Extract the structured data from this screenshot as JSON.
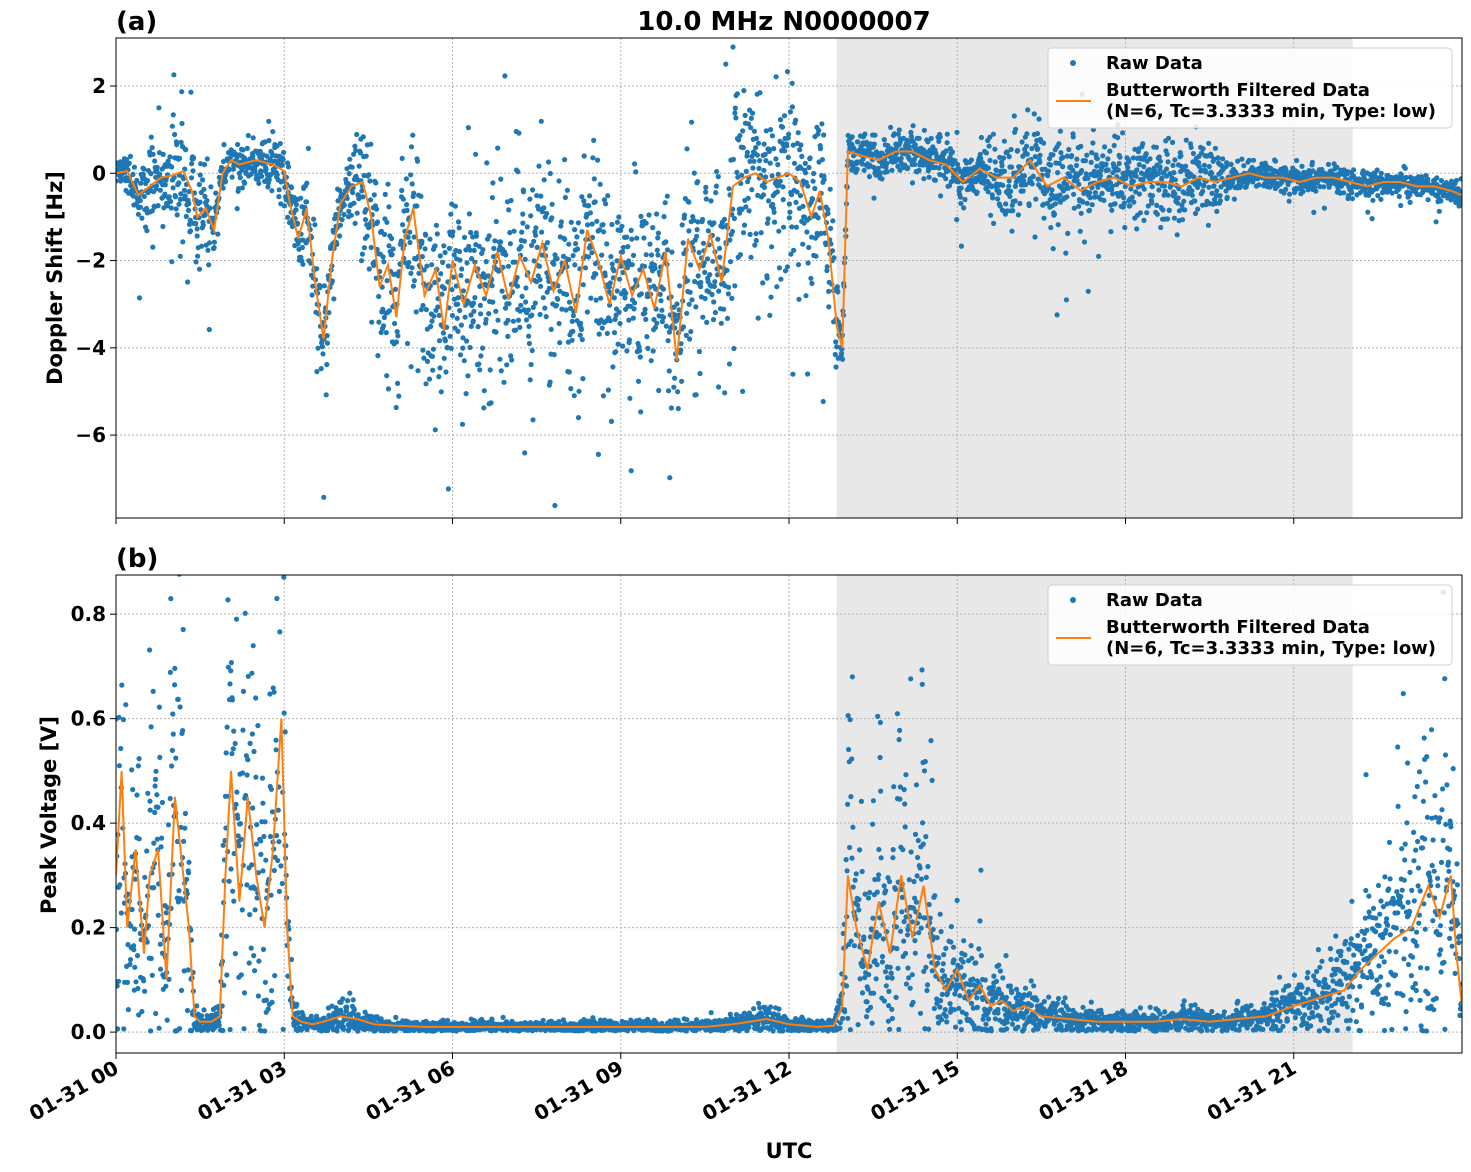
{
  "figure": {
    "title": "10.0 MHz N0000007",
    "xlabel": "UTC",
    "x_ticks": [
      "01-31 00",
      "01-31 03",
      "01-31 06",
      "01-31 09",
      "01-31 12",
      "01-31 15",
      "01-31 18",
      "01-31 21"
    ],
    "colors": {
      "raw": "#1f77b4",
      "filtered": "#ff7f0e",
      "shade": "#e8e8e8",
      "grid": "#b0b0b0"
    }
  },
  "legend": {
    "raw": "Raw Data",
    "filtered_line1": "Butterworth Filtered Data",
    "filtered_line2": "(N=6, Tc=3.3333 min, Type: low)",
    "placement": "top-right"
  },
  "chart_data": [
    {
      "panel": "(a)",
      "type": "scatter",
      "ylabel": "Doppler Shift [Hz]",
      "xlim_hours": [
        0,
        24
      ],
      "ylim": [
        -7.9,
        3.1
      ],
      "y_ticks": [
        2,
        0,
        -2,
        -4,
        -6
      ],
      "y_tick_labels": [
        "2",
        "0",
        "−2",
        "−4",
        "−6"
      ],
      "shaded_hours": [
        12.85,
        22.05
      ],
      "grid": true,
      "series": [
        {
          "name": "Butterworth Filtered Data",
          "style": "line",
          "x": [
            0,
            0.2,
            0.4,
            0.6,
            0.8,
            1.0,
            1.2,
            1.35,
            1.45,
            1.6,
            1.75,
            1.9,
            2.05,
            2.2,
            2.5,
            2.8,
            3.0,
            3.1,
            3.25,
            3.4,
            3.55,
            3.7,
            3.85,
            4.0,
            4.2,
            4.4,
            4.55,
            4.7,
            4.85,
            5.0,
            5.15,
            5.3,
            5.5,
            5.7,
            5.85,
            6.0,
            6.2,
            6.4,
            6.6,
            6.8,
            7.0,
            7.2,
            7.4,
            7.6,
            7.8,
            8.0,
            8.2,
            8.4,
            8.6,
            8.8,
            9.0,
            9.2,
            9.4,
            9.6,
            9.8,
            10.0,
            10.2,
            10.4,
            10.6,
            10.8,
            11.0,
            11.2,
            11.4,
            11.6,
            11.8,
            12.0,
            12.2,
            12.4,
            12.55,
            12.7,
            12.85,
            12.95,
            13.05,
            13.3,
            13.6,
            13.9,
            14.2,
            14.5,
            14.8,
            15.1,
            15.4,
            15.7,
            16.0,
            16.3,
            16.6,
            16.9,
            17.2,
            17.5,
            17.8,
            18.1,
            18.4,
            18.7,
            19.0,
            19.3,
            19.6,
            19.9,
            20.2,
            20.5,
            20.8,
            21.1,
            21.4,
            21.7,
            22.0,
            22.3,
            22.6,
            22.9,
            23.2,
            23.5,
            23.8,
            24.0
          ],
          "y": [
            0.0,
            0.05,
            -0.5,
            -0.3,
            -0.1,
            -0.05,
            0.05,
            -0.4,
            -1.0,
            -0.8,
            -1.3,
            0.0,
            0.3,
            0.2,
            0.3,
            0.2,
            0.05,
            -0.7,
            -1.5,
            -0.8,
            -2.5,
            -3.8,
            -2.0,
            -0.7,
            -0.3,
            -0.2,
            -1.0,
            -2.6,
            -2.1,
            -3.3,
            -1.5,
            -0.8,
            -2.8,
            -2.2,
            -3.6,
            -2.0,
            -3.0,
            -2.1,
            -2.8,
            -1.8,
            -2.9,
            -1.9,
            -2.5,
            -1.6,
            -2.7,
            -2.0,
            -3.2,
            -1.3,
            -2.0,
            -3.0,
            -1.9,
            -2.8,
            -2.2,
            -3.1,
            -1.8,
            -4.3,
            -1.5,
            -2.2,
            -1.4,
            -2.5,
            -0.3,
            -0.1,
            0.0,
            -0.2,
            -0.1,
            0.0,
            -0.2,
            -1.0,
            -0.4,
            -1.5,
            -3.5,
            -4.0,
            0.5,
            0.4,
            0.3,
            0.5,
            0.5,
            0.3,
            0.2,
            -0.2,
            0.1,
            -0.1,
            -0.1,
            0.3,
            -0.3,
            -0.1,
            -0.4,
            -0.2,
            -0.1,
            -0.3,
            -0.2,
            -0.2,
            -0.3,
            -0.1,
            -0.2,
            -0.1,
            0.0,
            -0.1,
            -0.1,
            -0.2,
            -0.1,
            -0.1,
            -0.2,
            -0.3,
            -0.2,
            -0.2,
            -0.3,
            -0.3,
            -0.4,
            -0.5
          ]
        },
        {
          "name": "Raw Data",
          "style": "points",
          "points_per_hour": 150,
          "scatter_halfwidth": [
            [
              0,
              0.3
            ],
            [
              1.3,
              1.3
            ],
            [
              2.0,
              0.3
            ],
            [
              3.1,
              0.8
            ],
            [
              3.5,
              1.2
            ],
            [
              4.1,
              0.5
            ],
            [
              4.6,
              2.0
            ],
            [
              12.3,
              2.0
            ],
            [
              12.8,
              1.6
            ],
            [
              13.0,
              0.35
            ],
            [
              15.5,
              0.6
            ],
            [
              16.0,
              1.0
            ],
            [
              19.5,
              0.8
            ],
            [
              19.8,
              0.3
            ],
            [
              24,
              0.25
            ]
          ]
        }
      ]
    },
    {
      "panel": "(b)",
      "type": "scatter",
      "ylabel": "Peak Voltage [V]",
      "xlim_hours": [
        0,
        24
      ],
      "ylim": [
        -0.04,
        0.875
      ],
      "y_ticks": [
        0.8,
        0.6,
        0.4,
        0.2,
        0.0
      ],
      "y_tick_labels": [
        "0.8",
        "0.6",
        "0.4",
        "0.2",
        "0.0"
      ],
      "shaded_hours": [
        12.85,
        22.05
      ],
      "grid": true,
      "series": [
        {
          "name": "Butterworth Filtered Data",
          "style": "line",
          "x": [
            0,
            0.1,
            0.2,
            0.35,
            0.5,
            0.6,
            0.75,
            0.9,
            1.05,
            1.2,
            1.3,
            1.4,
            1.5,
            1.7,
            1.85,
            1.95,
            2.05,
            2.2,
            2.35,
            2.5,
            2.65,
            2.8,
            2.95,
            3.05,
            3.15,
            3.3,
            3.5,
            3.7,
            4.0,
            4.3,
            4.6,
            5.0,
            5.5,
            6.0,
            7.0,
            8.0,
            9.0,
            10.0,
            10.5,
            11.0,
            11.3,
            11.6,
            12.0,
            12.5,
            12.8,
            12.95,
            13.05,
            13.2,
            13.4,
            13.6,
            13.8,
            14.0,
            14.2,
            14.4,
            14.6,
            14.8,
            15.0,
            15.2,
            15.4,
            15.6,
            15.8,
            16.0,
            16.2,
            16.5,
            17.0,
            17.5,
            18.0,
            18.5,
            19.0,
            19.5,
            20.0,
            20.5,
            21.0,
            21.3,
            21.6,
            21.9,
            22.2,
            22.5,
            22.8,
            23.1,
            23.4,
            23.6,
            23.8,
            23.9,
            24.0
          ],
          "y": [
            0.3,
            0.5,
            0.2,
            0.35,
            0.15,
            0.3,
            0.35,
            0.1,
            0.45,
            0.3,
            0.2,
            0.03,
            0.02,
            0.02,
            0.03,
            0.3,
            0.5,
            0.25,
            0.45,
            0.3,
            0.2,
            0.35,
            0.6,
            0.2,
            0.03,
            0.02,
            0.015,
            0.02,
            0.03,
            0.025,
            0.015,
            0.012,
            0.01,
            0.01,
            0.01,
            0.01,
            0.01,
            0.01,
            0.01,
            0.015,
            0.02,
            0.025,
            0.015,
            0.01,
            0.012,
            0.05,
            0.3,
            0.2,
            0.12,
            0.25,
            0.15,
            0.3,
            0.18,
            0.28,
            0.12,
            0.08,
            0.12,
            0.06,
            0.09,
            0.05,
            0.06,
            0.04,
            0.05,
            0.03,
            0.025,
            0.02,
            0.02,
            0.02,
            0.025,
            0.02,
            0.025,
            0.03,
            0.05,
            0.06,
            0.07,
            0.08,
            0.12,
            0.15,
            0.18,
            0.2,
            0.28,
            0.22,
            0.3,
            0.15,
            0.05
          ]
        },
        {
          "name": "Raw Data",
          "style": "points",
          "points_per_hour": 150
        }
      ]
    }
  ]
}
